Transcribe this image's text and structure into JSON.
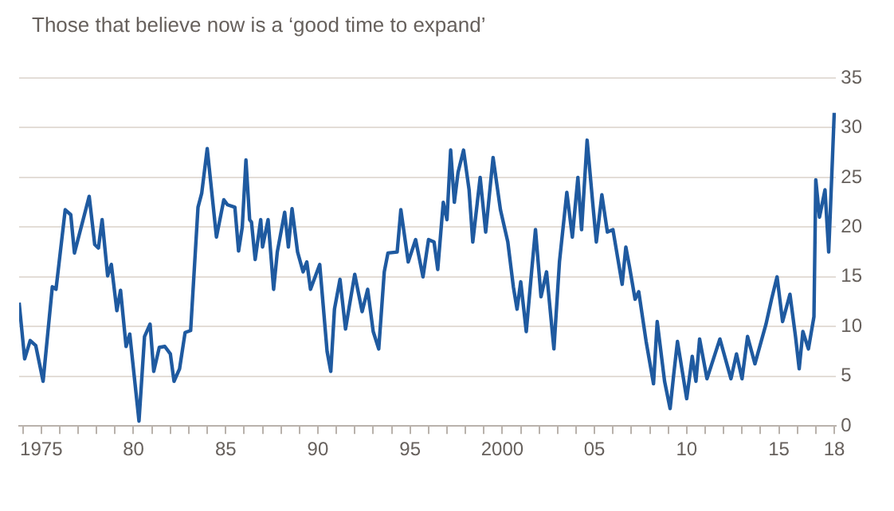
{
  "chart_data": {
    "type": "line",
    "subtitle": "Those that believe now is a ‘good time to expand’",
    "x": [
      1973.8,
      1974.1,
      1974.4,
      1974.7,
      1975.1,
      1975.6,
      1975.8,
      1976.3,
      1976.6,
      1976.8,
      1977.6,
      1977.9,
      1978.1,
      1978.3,
      1978.6,
      1978.8,
      1979.1,
      1979.3,
      1979.6,
      1979.8,
      1980.3,
      1980.6,
      1980.9,
      1981.1,
      1981.4,
      1981.7,
      1982.0,
      1982.2,
      1982.5,
      1982.8,
      1983.1,
      1983.5,
      1983.7,
      1984.0,
      1984.5,
      1984.9,
      1985.1,
      1985.5,
      1985.7,
      1985.9,
      1986.1,
      1986.3,
      1986.4,
      1986.6,
      1986.9,
      1987.0,
      1987.3,
      1987.6,
      1987.8,
      1988.2,
      1988.4,
      1988.6,
      1988.9,
      1989.2,
      1989.4,
      1989.6,
      1990.1,
      1990.5,
      1990.7,
      1990.9,
      1991.2,
      1991.5,
      1991.7,
      1992.0,
      1992.4,
      1992.7,
      1993.0,
      1993.3,
      1993.6,
      1993.8,
      1994.3,
      1994.5,
      1994.9,
      1995.3,
      1995.7,
      1996.0,
      1996.3,
      1996.5,
      1996.8,
      1997.0,
      1997.2,
      1997.4,
      1997.6,
      1997.9,
      1998.2,
      1998.4,
      1998.8,
      1999.1,
      1999.5,
      1999.9,
      2000.3,
      2000.6,
      2000.8,
      2001.0,
      2001.3,
      2001.6,
      2001.8,
      2002.1,
      2002.4,
      2002.8,
      2003.1,
      2003.5,
      2003.8,
      2004.1,
      2004.3,
      2004.6,
      2004.9,
      2005.1,
      2005.4,
      2005.7,
      2006.0,
      2006.5,
      2006.7,
      2006.9,
      2007.2,
      2007.4,
      2007.8,
      2008.2,
      2008.4,
      2008.8,
      2009.1,
      2009.3,
      2009.5,
      2010.0,
      2010.3,
      2010.5,
      2010.7,
      2011.1,
      2011.8,
      2012.4,
      2012.7,
      2013.0,
      2013.3,
      2013.7,
      2014.3,
      2014.6,
      2014.9,
      2015.2,
      2015.6,
      2015.9,
      2016.1,
      2016.3,
      2016.6,
      2016.9,
      2017.0,
      2017.2,
      2017.5,
      2017.7,
      2017.9,
      2018.0
    ],
    "values": [
      12.4,
      6.75,
      8.6,
      8.1,
      4.5,
      14,
      13.75,
      21.75,
      21.25,
      17.4,
      23.1,
      18.25,
      17.9,
      20.75,
      15.1,
      16.25,
      11.6,
      13.65,
      8,
      9.25,
      0.5,
      9,
      10.25,
      5.5,
      7.9,
      8,
      7.25,
      4.5,
      5.75,
      9.4,
      9.6,
      22,
      23.4,
      27.9,
      19,
      22.75,
      22.25,
      22,
      17.6,
      20,
      26.75,
      20.75,
      20.5,
      16.75,
      20.75,
      18,
      20.75,
      13.75,
      17.5,
      21.5,
      18,
      21.85,
      17.5,
      15.5,
      16.5,
      13.75,
      16.25,
      7.5,
      5.5,
      11.75,
      14.75,
      9.75,
      12,
      15.25,
      11.5,
      13.75,
      9.5,
      7.75,
      15.5,
      17.4,
      17.5,
      21.75,
      16.5,
      18.75,
      15,
      18.75,
      18.5,
      15.75,
      22.5,
      20.75,
      27.75,
      22.5,
      25.5,
      27.75,
      23.75,
      18.5,
      25,
      19.5,
      27,
      21.75,
      18.5,
      14,
      11.75,
      14.5,
      9.5,
      15.75,
      19.75,
      13,
      15.5,
      7.75,
      16.5,
      23.5,
      19,
      25,
      19.75,
      28.75,
      22.5,
      18.5,
      23.25,
      19.5,
      19.75,
      14.25,
      18,
      16,
      12.75,
      13.5,
      8.5,
      4.25,
      10.5,
      4.5,
      1.75,
      5.25,
      8.5,
      2.75,
      7,
      4.5,
      8.75,
      4.75,
      8.75,
      4.75,
      7.25,
      4.75,
      9,
      6.25,
      10.25,
      12.75,
      15,
      10.5,
      13.25,
      9,
      5.75,
      9.5,
      7.75,
      11,
      24.75,
      21,
      23.75,
      17.5,
      26.75,
      31.5
    ],
    "color": "#1f5aa0",
    "xlim": [
      1973.8,
      2018.1
    ],
    "xticks": [
      {
        "value": 1974,
        "label": null
      },
      {
        "value": 1975,
        "label": "1975"
      },
      {
        "value": 1976,
        "label": null
      },
      {
        "value": 1977,
        "label": null
      },
      {
        "value": 1978,
        "label": null
      },
      {
        "value": 1979,
        "label": null
      },
      {
        "value": 1980,
        "label": "80"
      },
      {
        "value": 1981,
        "label": null
      },
      {
        "value": 1982,
        "label": null
      },
      {
        "value": 1983,
        "label": null
      },
      {
        "value": 1984,
        "label": null
      },
      {
        "value": 1985,
        "label": "85"
      },
      {
        "value": 1986,
        "label": null
      },
      {
        "value": 1987,
        "label": null
      },
      {
        "value": 1988,
        "label": null
      },
      {
        "value": 1989,
        "label": null
      },
      {
        "value": 1990,
        "label": "90"
      },
      {
        "value": 1991,
        "label": null
      },
      {
        "value": 1992,
        "label": null
      },
      {
        "value": 1993,
        "label": null
      },
      {
        "value": 1994,
        "label": null
      },
      {
        "value": 1995,
        "label": "95"
      },
      {
        "value": 1996,
        "label": null
      },
      {
        "value": 1997,
        "label": null
      },
      {
        "value": 1998,
        "label": null
      },
      {
        "value": 1999,
        "label": null
      },
      {
        "value": 2000,
        "label": "2000"
      },
      {
        "value": 2001,
        "label": null
      },
      {
        "value": 2002,
        "label": null
      },
      {
        "value": 2003,
        "label": null
      },
      {
        "value": 2004,
        "label": null
      },
      {
        "value": 2005,
        "label": "05"
      },
      {
        "value": 2006,
        "label": null
      },
      {
        "value": 2007,
        "label": null
      },
      {
        "value": 2008,
        "label": null
      },
      {
        "value": 2009,
        "label": null
      },
      {
        "value": 2010,
        "label": "10"
      },
      {
        "value": 2011,
        "label": null
      },
      {
        "value": 2012,
        "label": null
      },
      {
        "value": 2013,
        "label": null
      },
      {
        "value": 2014,
        "label": null
      },
      {
        "value": 2015,
        "label": "15"
      },
      {
        "value": 2016,
        "label": null
      },
      {
        "value": 2017,
        "label": null
      },
      {
        "value": 2018,
        "label": "18"
      }
    ],
    "ylim": [
      0,
      35
    ],
    "yticks": [
      0,
      5,
      10,
      15,
      20,
      25,
      30,
      35
    ],
    "grid": "y",
    "legend": false,
    "marker": "none",
    "line_style": "solid"
  }
}
